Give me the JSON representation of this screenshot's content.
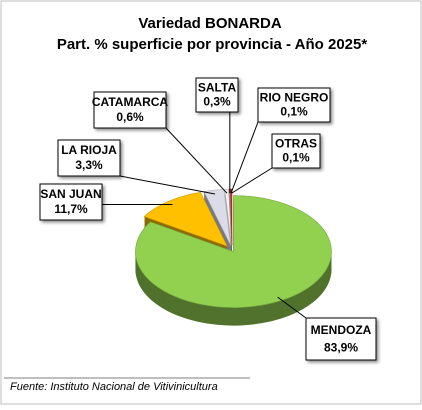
{
  "chart_data": {
    "type": "pie",
    "title": "Variedad BONARDA",
    "subtitle": "Part. % superficie por provincia - Año 2025*",
    "source": "Fuente: Instituto Nacional de Vitivinicultura",
    "categories": [
      "MENDOZA",
      "SAN JUAN",
      "LA RIOJA",
      "CATAMARCA",
      "SALTA",
      "RIO NEGRO",
      "OTRAS"
    ],
    "values": [
      83.9,
      11.7,
      3.3,
      0.6,
      0.3,
      0.1,
      0.1
    ],
    "value_labels": [
      "83,9%",
      "11,7%",
      "3,3%",
      "0,6%",
      "0,3%",
      "0,1%",
      "0,1%"
    ],
    "colors": [
      "#92d050",
      "#ffc000",
      "#dcdce8",
      "#f4f4f4",
      "#a6a6a6",
      "#c00000",
      "#ff3030"
    ]
  }
}
